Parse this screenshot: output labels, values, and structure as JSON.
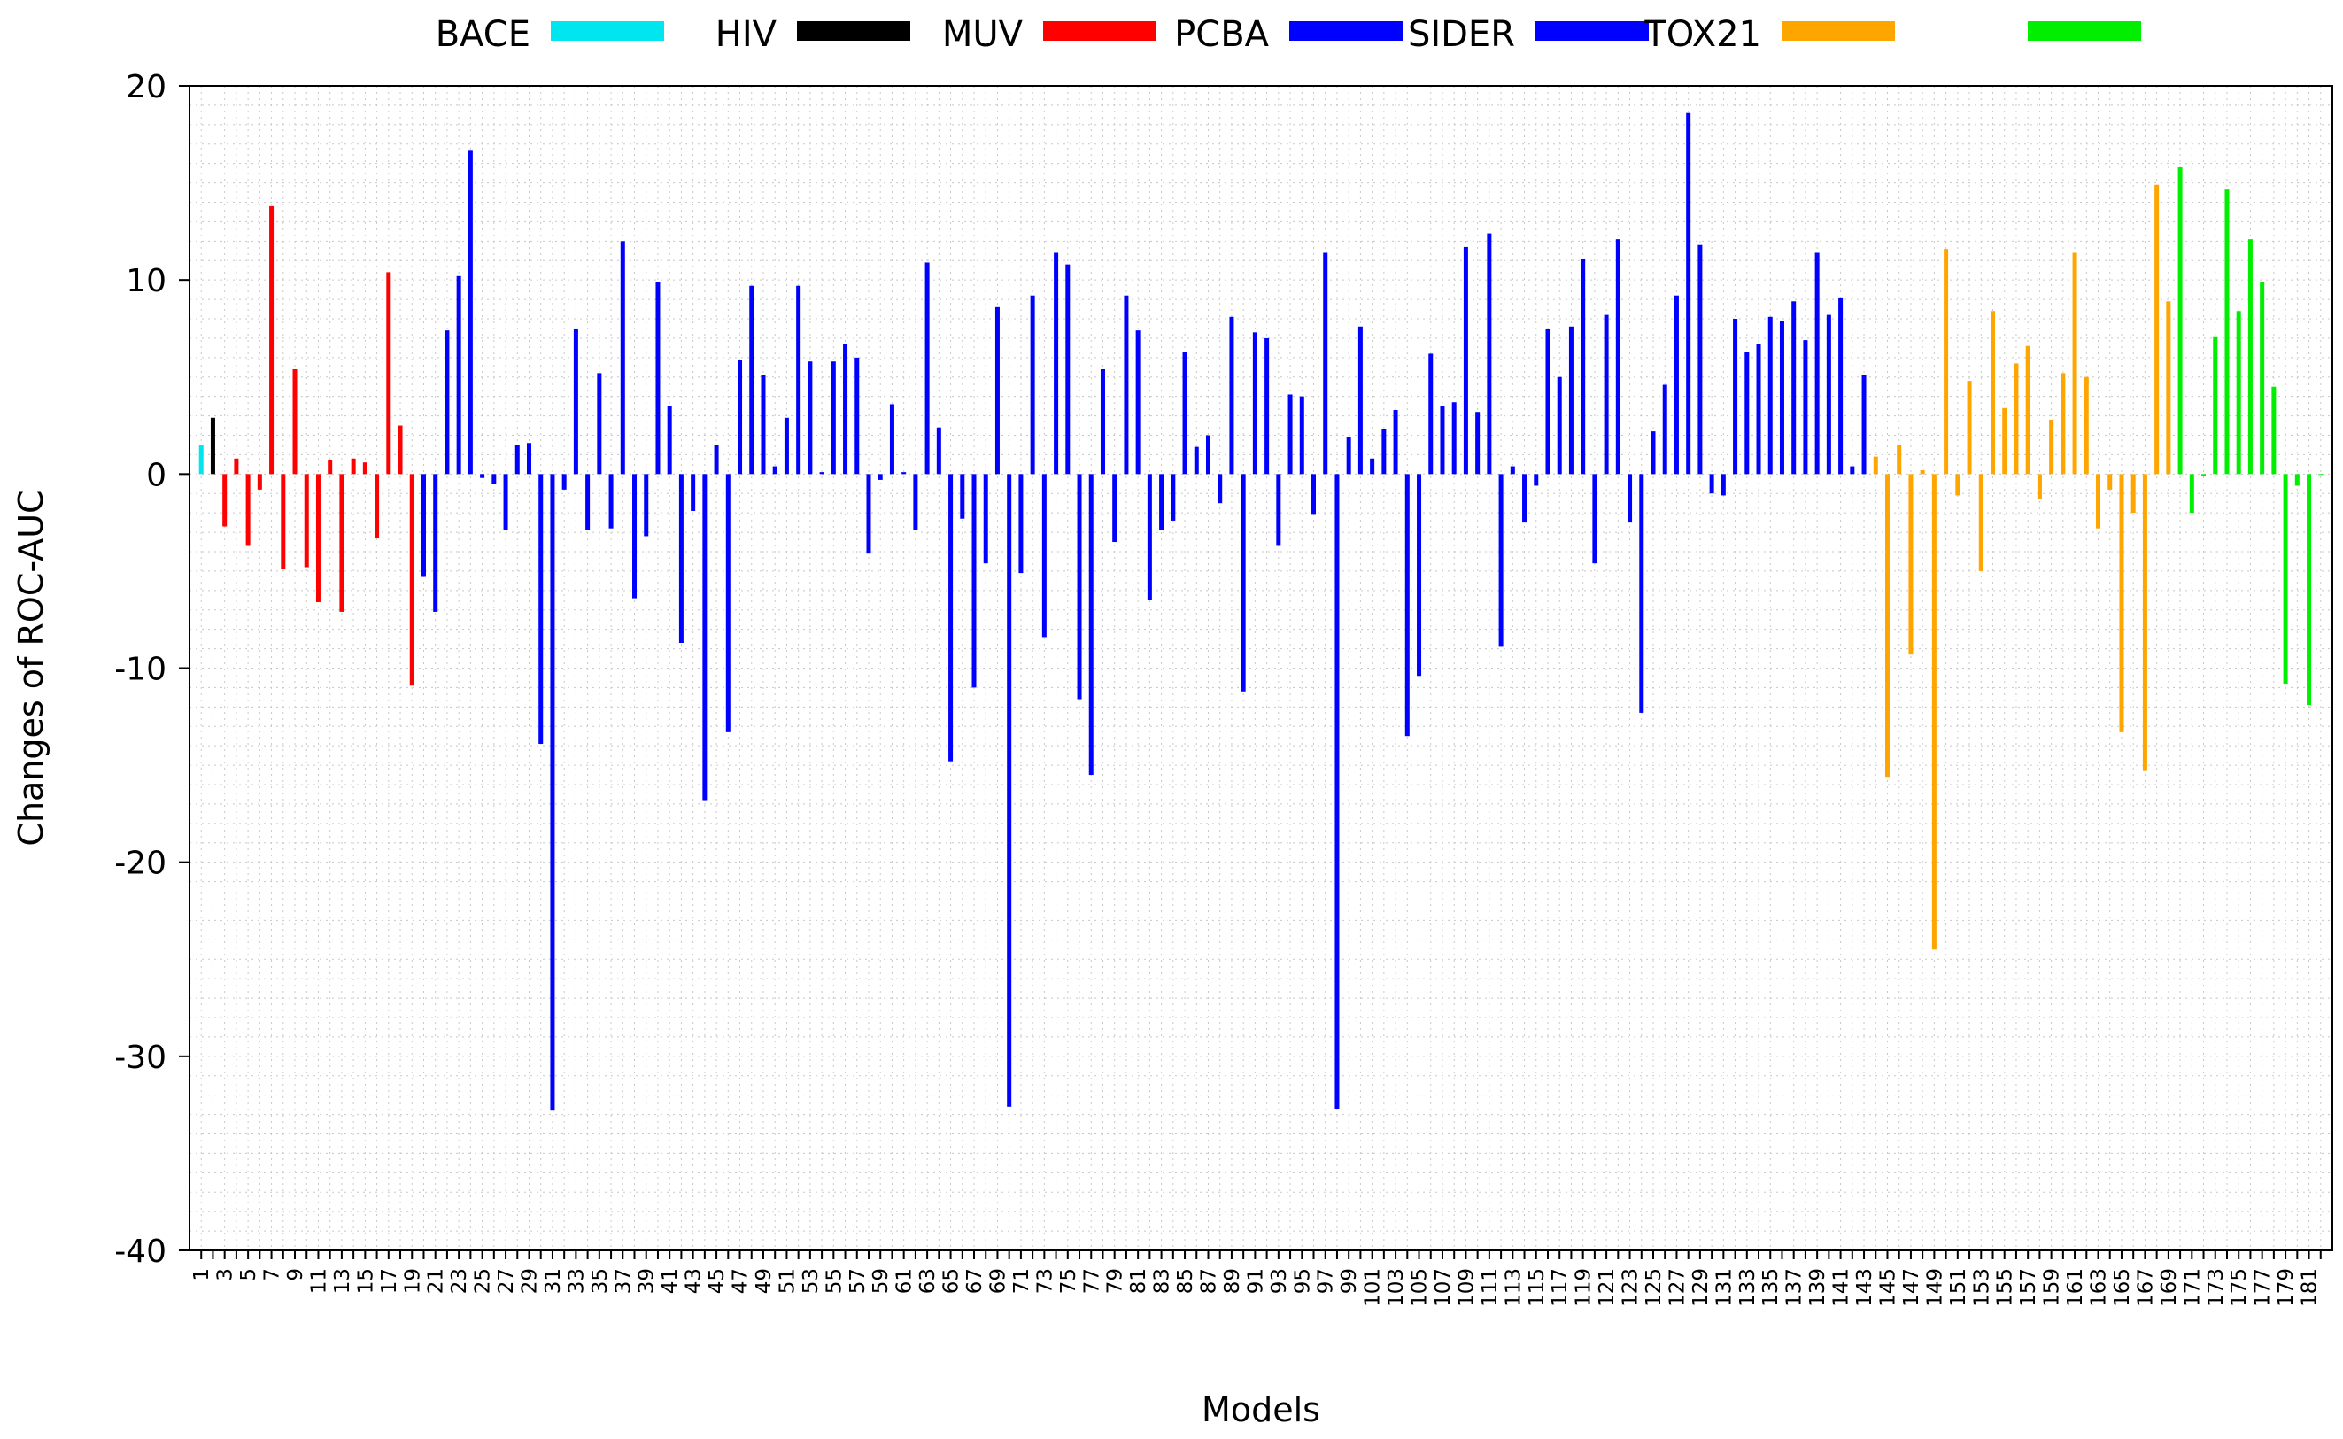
{
  "chart_data": {
    "type": "bar",
    "xlabel": "Models",
    "ylabel": "Changes of ROC-AUC",
    "ylim": [
      -40,
      20
    ],
    "yticks": [
      20,
      10,
      0,
      -10,
      -20,
      -30,
      -40
    ],
    "xticks": [
      1,
      3,
      5,
      7,
      9,
      11,
      13,
      15,
      17,
      19,
      21,
      23,
      25,
      27,
      29,
      31,
      33,
      35,
      37,
      39,
      41,
      43,
      45,
      47,
      49,
      51,
      53,
      55,
      57,
      59,
      61,
      63,
      65,
      67,
      69,
      71,
      73,
      75,
      77,
      79,
      81,
      83,
      85,
      87,
      89,
      91,
      93,
      95,
      97,
      99,
      101,
      103,
      105,
      107,
      109,
      111,
      113,
      115,
      117,
      119,
      121,
      123,
      125,
      127,
      129,
      131,
      133,
      135,
      137,
      139,
      141,
      143,
      145,
      147,
      149,
      151,
      153,
      155,
      157,
      159,
      161,
      163,
      165,
      167,
      169,
      171,
      173,
      175,
      177,
      179,
      181
    ],
    "x_range": [
      1,
      182
    ],
    "grid": true,
    "legend_position": "top",
    "series": [
      {
        "name": "BACE",
        "color": "#00e5ee",
        "x": [
          1
        ],
        "values": [
          1.5
        ]
      },
      {
        "name": "HIV",
        "color": "#000000",
        "x": [
          2
        ],
        "values": [
          2.9
        ]
      },
      {
        "name": "MUV",
        "color": "#ff0000",
        "x": [
          3,
          4,
          5,
          6,
          7,
          8,
          9,
          10,
          11,
          12,
          13,
          14,
          15,
          16,
          17,
          18,
          19
        ],
        "values": [
          -2.7,
          0.8,
          -3.7,
          -0.8,
          13.8,
          -4.9,
          5.4,
          -4.8,
          -6.6,
          0.7,
          -7.1,
          0.8,
          0.6,
          -3.3,
          10.4,
          2.5,
          -10.9
        ]
      },
      {
        "name": "PCBA",
        "color": "#0000ff",
        "x": [
          20,
          21,
          22,
          23,
          24
        ],
        "values": [
          -5.3,
          -7.1,
          7.4,
          10.2,
          16.7
        ]
      },
      {
        "name": "SIDER",
        "color": "#0000ff",
        "x": [
          25,
          26,
          27,
          28,
          29,
          30,
          31,
          32,
          33,
          34,
          35,
          36,
          37,
          38,
          39,
          40,
          41,
          42,
          43,
          44,
          45,
          46,
          47,
          48,
          49,
          50,
          51,
          52,
          53,
          54,
          55,
          56,
          57,
          58,
          59,
          60,
          61,
          62,
          63,
          64,
          65,
          66,
          67,
          68,
          69,
          70,
          71,
          72,
          73,
          74,
          75,
          76,
          77,
          78,
          79,
          80,
          81,
          82,
          83,
          84,
          85,
          86,
          87,
          88,
          89,
          90,
          91,
          92,
          93,
          94,
          95,
          96,
          97,
          98,
          99,
          100,
          101,
          102,
          103,
          104,
          105,
          106,
          107,
          108,
          109,
          110,
          111,
          112,
          113,
          114,
          115,
          116,
          117,
          118,
          119,
          120,
          121,
          122,
          123,
          124,
          125,
          126,
          127,
          128,
          129,
          130,
          131,
          132,
          133,
          134,
          135,
          136,
          137,
          138,
          139,
          140,
          141,
          142,
          143
        ],
        "values": [
          -0.2,
          -0.5,
          -2.9,
          1.5,
          1.6,
          -13.9,
          -32.8,
          -0.8,
          7.5,
          -2.9,
          5.2,
          -2.8,
          12.0,
          -6.4,
          -3.2,
          9.9,
          3.5,
          -8.7,
          -1.9,
          -16.8,
          1.5,
          -13.3,
          5.9,
          9.7,
          5.1,
          0.4,
          2.9,
          9.7,
          5.8,
          0.1,
          5.8,
          6.7,
          6.0,
          -4.1,
          -0.3,
          3.6,
          0.1,
          -2.9,
          10.9,
          2.4,
          -14.8,
          -2.3,
          -11.0,
          -4.6,
          8.6,
          -32.6,
          -5.1,
          9.2,
          -8.4,
          11.4,
          10.8,
          -11.6,
          -15.5,
          5.4,
          -3.5,
          9.2,
          7.4,
          -6.5,
          -2.9,
          -2.4,
          6.3,
          1.4,
          2.0,
          -1.5,
          8.1,
          -11.2,
          7.3,
          7.0,
          -3.7,
          4.1,
          4.0,
          -2.1,
          11.4,
          -32.7,
          1.9,
          7.6,
          0.8,
          2.3,
          3.3,
          -13.5,
          -10.4,
          6.2,
          3.5,
          3.7,
          11.7,
          3.2,
          12.4,
          -8.9,
          0.4,
          -2.5,
          -0.6,
          7.5,
          5.0,
          7.6,
          11.1,
          -4.6,
          8.2,
          12.1,
          -2.5,
          -12.3,
          2.2,
          4.6,
          9.2,
          18.6,
          11.8,
          -1.0,
          -1.1,
          8.0,
          6.3,
          6.7,
          8.1,
          7.9,
          8.9,
          6.9,
          11.4,
          8.2,
          9.1,
          0.4,
          5.1
        ]
      },
      {
        "name": "TOX21",
        "color": "#ffa500",
        "x": [
          144,
          145,
          146,
          147,
          148,
          149,
          150,
          151,
          152,
          153,
          154,
          155,
          156,
          157,
          158,
          159,
          160,
          161,
          162,
          163,
          164,
          165,
          166,
          167,
          168,
          169
        ],
        "values": [
          0.9,
          -15.6,
          1.5,
          -9.3,
          0.2,
          -24.5,
          11.6,
          -1.1,
          4.8,
          -5.0,
          8.4,
          3.4,
          5.7,
          6.6,
          -1.3,
          2.8,
          5.2,
          11.4,
          5.0,
          -2.8,
          -0.8,
          -13.3,
          -2.0,
          -15.3,
          14.9,
          8.9
        ]
      },
      {
        "name": "TOX21",
        "color": "#00ee00",
        "x": [
          170,
          171,
          172,
          173,
          174,
          175,
          176,
          177,
          178,
          179,
          180,
          181,
          182
        ],
        "values": [
          15.8,
          -2.0,
          -0.1,
          7.1,
          14.7,
          8.4,
          12.1,
          9.9,
          4.5,
          -10.8,
          -0.6,
          -11.9,
          0.0
        ]
      }
    ],
    "legend": [
      {
        "label": "BACE",
        "color": "#00e5ee"
      },
      {
        "label": "HIV",
        "color": "#000000"
      },
      {
        "label": "MUV",
        "color": "#ff0000"
      },
      {
        "label": "PCBA",
        "color": "#0000ff"
      },
      {
        "label": "SIDER",
        "color": "#0000ff"
      },
      {
        "label": "TOX21",
        "color": "#ffa500"
      },
      {
        "label": "",
        "color": "#00ee00"
      }
    ]
  }
}
